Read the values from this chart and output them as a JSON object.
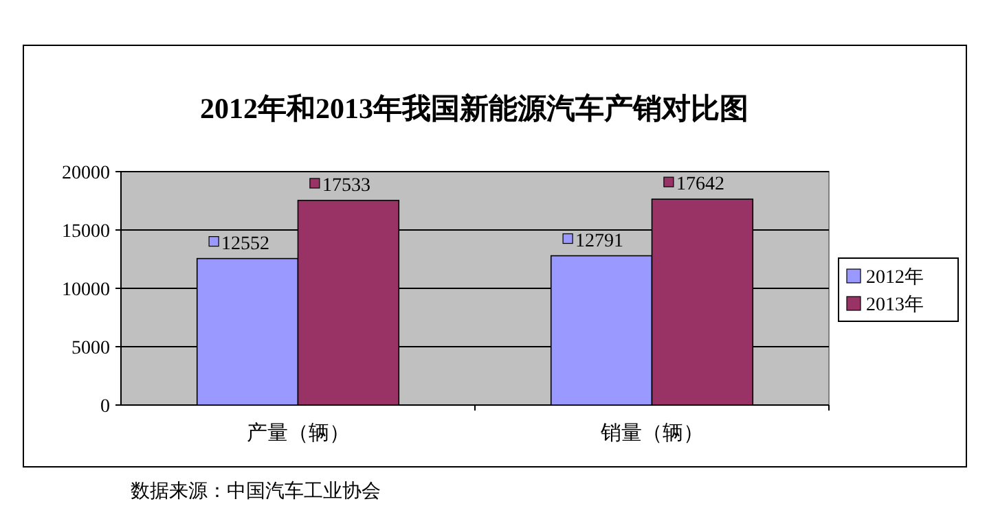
{
  "chart_data": {
    "type": "bar",
    "title": "2012年和2013年我国新能源汽车产销对比图",
    "categories": [
      "产量（辆）",
      "销量（辆）"
    ],
    "series": [
      {
        "name": "2012年",
        "color": "#9999ff",
        "values": [
          12552,
          12791
        ]
      },
      {
        "name": "2013年",
        "color": "#993366",
        "values": [
          17533,
          17642
        ]
      }
    ],
    "ylim": [
      0,
      20000
    ],
    "yticks": [
      0,
      5000,
      10000,
      15000,
      20000
    ],
    "grid": "y",
    "legend": "right",
    "data_labels": true,
    "annotations": [
      "数据来源：中国汽车工业协会"
    ]
  }
}
